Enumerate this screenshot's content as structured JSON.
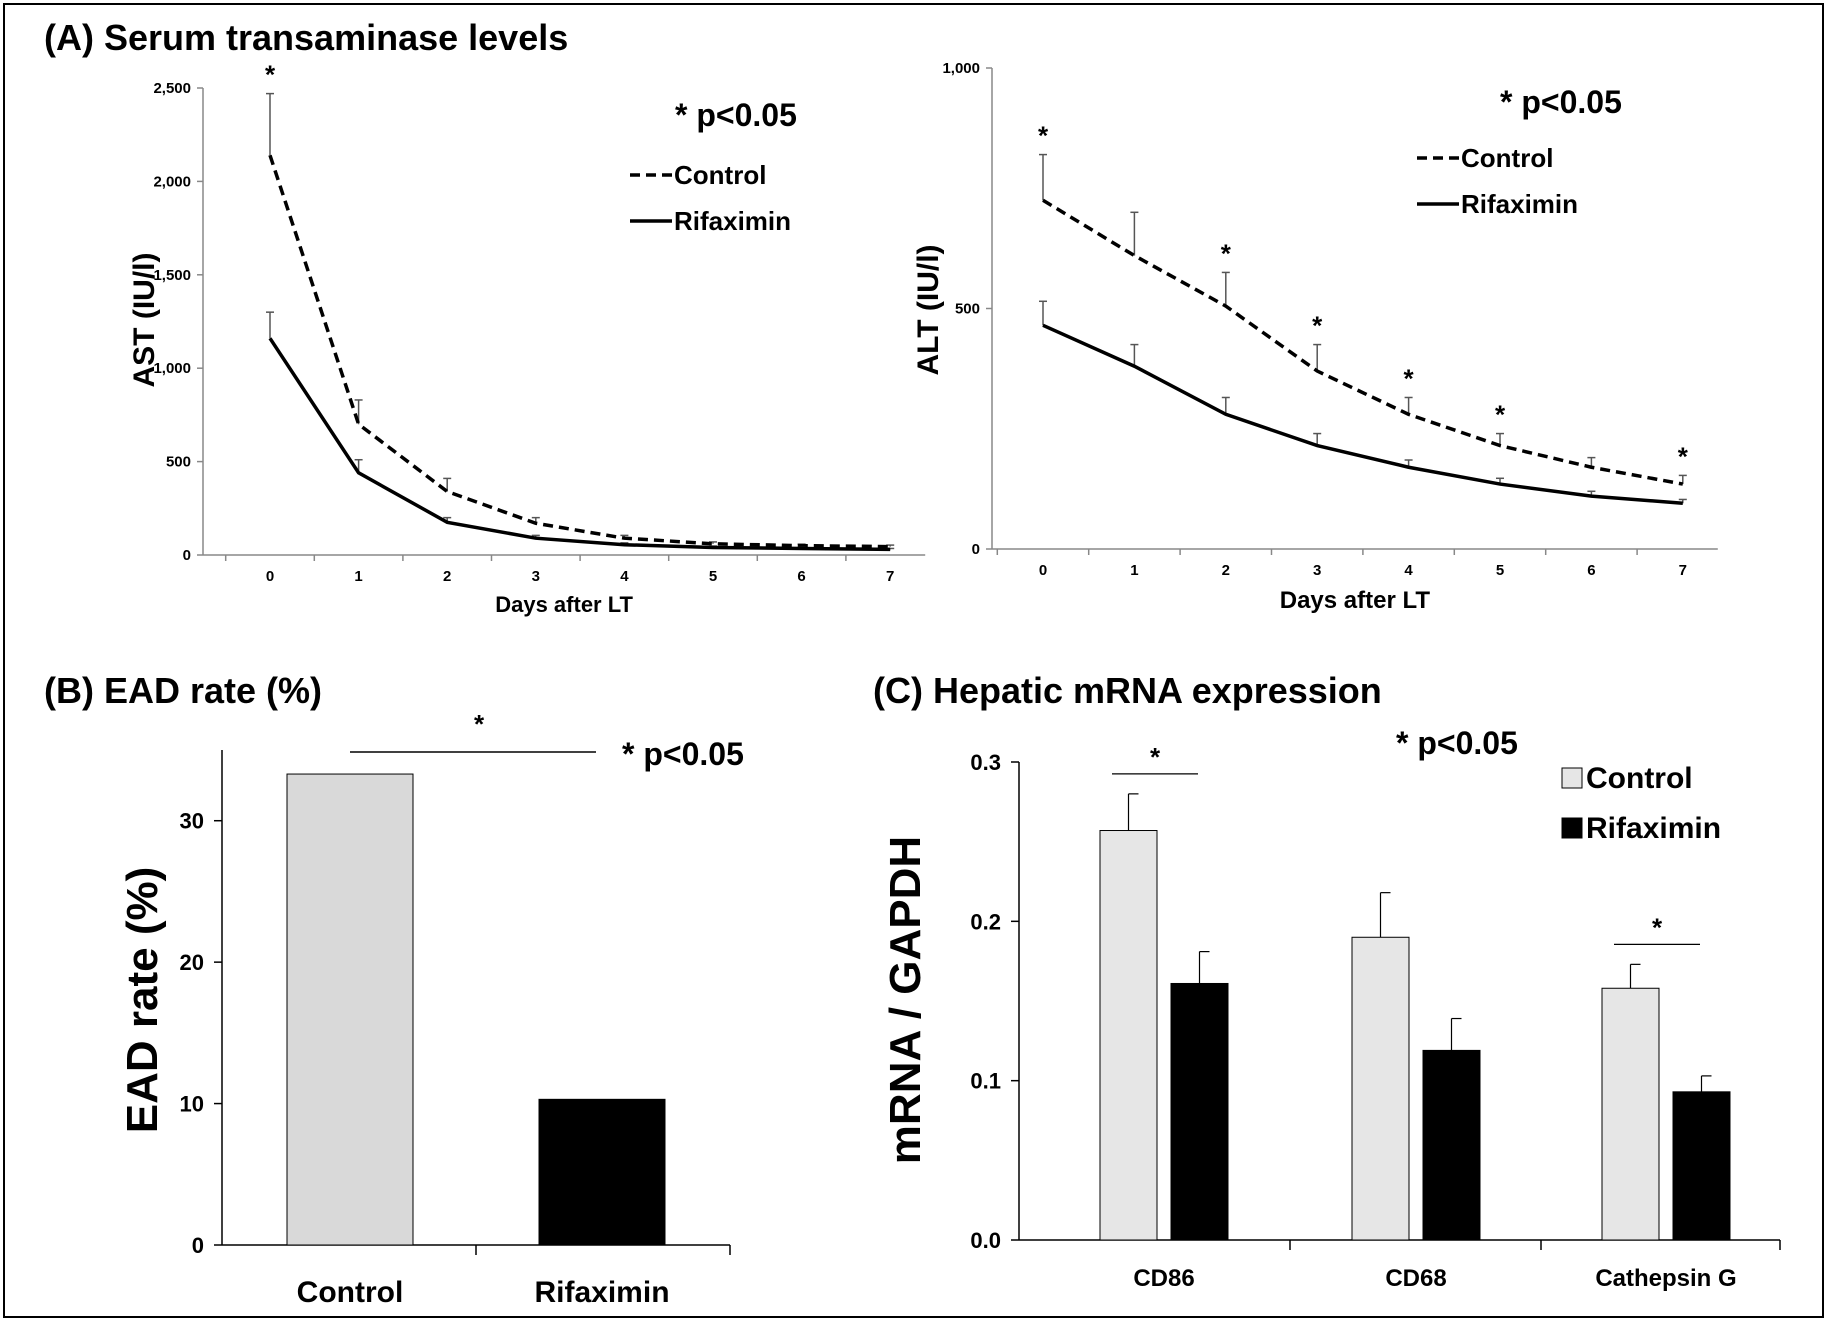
{
  "panels": {
    "a_title": "(A) Serum transaminase levels",
    "b_title": "(B) EAD rate (%)",
    "c_title": "(C) Hepatic mRNA expression"
  },
  "chart_data": [
    {
      "type": "line",
      "id": "ast",
      "xlabel": "Days after LT",
      "ylabel": "AST (IU/l)",
      "x": [
        0,
        1,
        2,
        3,
        4,
        5,
        6,
        7
      ],
      "x_ticks": [
        "0",
        "1",
        "2",
        "3",
        "4",
        "5",
        "6",
        "7"
      ],
      "ylim": [
        0,
        2500
      ],
      "y_ticks": [
        "0",
        "500",
        "1,000",
        "1,500",
        "2,000",
        "2,500"
      ],
      "y_tick_values": [
        0,
        500,
        1000,
        1500,
        2000,
        2500
      ],
      "series": [
        {
          "name": "Control",
          "style": "dashed",
          "values": [
            2140,
            700,
            340,
            170,
            90,
            60,
            50,
            45
          ],
          "err": [
            330,
            130,
            70,
            30,
            15,
            10,
            8,
            8
          ]
        },
        {
          "name": "Rifaximin",
          "style": "solid",
          "values": [
            1160,
            440,
            175,
            90,
            55,
            40,
            35,
            30
          ],
          "err": [
            140,
            70,
            25,
            15,
            10,
            8,
            5,
            5
          ]
        }
      ],
      "significance_days": [
        0
      ],
      "sig_label": "* p<0.05",
      "sig_marker": "*"
    },
    {
      "type": "line",
      "id": "alt",
      "xlabel": "Days after LT",
      "ylabel": "ALT (IU/l)",
      "x": [
        0,
        1,
        2,
        3,
        4,
        5,
        6,
        7
      ],
      "x_ticks": [
        "0",
        "1",
        "2",
        "3",
        "4",
        "5",
        "6",
        "7"
      ],
      "ylim": [
        0,
        1000
      ],
      "y_ticks": [
        "0",
        "500",
        "1,000"
      ],
      "y_tick_values": [
        0,
        500,
        1000
      ],
      "series": [
        {
          "name": "Control",
          "style": "dashed",
          "values": [
            725,
            610,
            505,
            370,
            280,
            215,
            170,
            135
          ],
          "err": [
            95,
            90,
            70,
            55,
            35,
            25,
            20,
            18
          ]
        },
        {
          "name": "Rifaximin",
          "style": "solid",
          "values": [
            465,
            380,
            280,
            215,
            170,
            135,
            110,
            95
          ],
          "err": [
            50,
            45,
            35,
            25,
            15,
            12,
            10,
            8
          ]
        }
      ],
      "significance_days": [
        0,
        2,
        3,
        4,
        5,
        7
      ],
      "sig_label": "* p<0.05",
      "sig_marker": "*"
    },
    {
      "type": "bar",
      "id": "ead",
      "ylabel": "EAD rate (%)",
      "categories": [
        "Control",
        "Rifaximin"
      ],
      "values": [
        33.3,
        10.3
      ],
      "colors": [
        "#d9d9d9",
        "#000000"
      ],
      "ylim": [
        0,
        35
      ],
      "y_ticks": [
        "0",
        "10",
        "20",
        "30"
      ],
      "y_tick_values": [
        0,
        10,
        20,
        30
      ],
      "sig_label": "* p<0.05",
      "sig_marker": "*"
    },
    {
      "type": "bar",
      "id": "mrna",
      "ylabel": "mRNA / GAPDH",
      "categories": [
        "CD86",
        "CD68",
        "Cathepsin G"
      ],
      "ylim": [
        0,
        0.3
      ],
      "y_ticks": [
        "0.0",
        "0.1",
        "0.2",
        "0.3"
      ],
      "y_tick_values": [
        0,
        0.1,
        0.2,
        0.3
      ],
      "series": [
        {
          "name": "Control",
          "color": "#e6e6e6",
          "values": [
            0.257,
            0.19,
            0.158
          ],
          "err": [
            0.023,
            0.028,
            0.015
          ]
        },
        {
          "name": "Rifaximin",
          "color": "#000000",
          "values": [
            0.161,
            0.119,
            0.093
          ],
          "err": [
            0.02,
            0.02,
            0.01
          ]
        }
      ],
      "significant_categories": [
        "CD86",
        "Cathepsin G"
      ],
      "sig_label": "* p<0.05",
      "sig_marker": "*"
    }
  ]
}
